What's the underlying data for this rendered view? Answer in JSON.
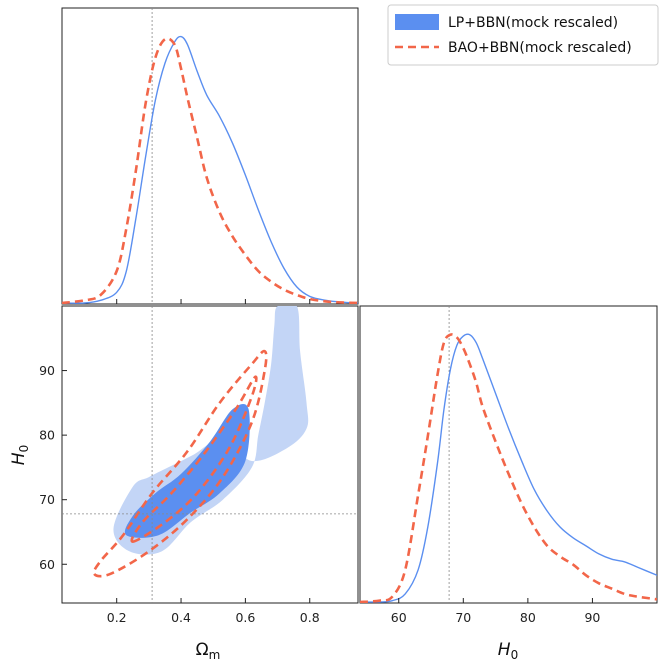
{
  "colors": {
    "lp": "#5b8ff0",
    "lp_inner": "#5b8ff0",
    "lp_outer": "#c3d5f6",
    "bao": "#f26649",
    "ref": "#888888"
  },
  "chart_data": {
    "type": "corner",
    "legend": {
      "placement": "top-right",
      "entries": [
        {
          "name": "LP+BBN(mock rescaled)",
          "style": "filled"
        },
        {
          "name": "BAO+BBN(mock rescaled)",
          "style": "dashed"
        }
      ]
    },
    "params": {
      "omega_m": {
        "label_base": "Ω",
        "label_sub": "m",
        "range": [
          0.03,
          0.95
        ],
        "ticks": [
          0.2,
          0.4,
          0.6,
          0.8
        ],
        "tick_labels": [
          "0.2",
          "0.4",
          "0.6",
          "0.8"
        ],
        "reference": 0.31
      },
      "h0": {
        "label_base": "H",
        "label_sub": "0",
        "range": [
          54,
          100
        ],
        "ticks": [
          60,
          70,
          80,
          90
        ],
        "tick_labels": [
          "60",
          "70",
          "80",
          "90"
        ],
        "reference": 67.8
      }
    },
    "omega_m_pdf": {
      "x": [
        0.03,
        0.1,
        0.15,
        0.2,
        0.23,
        0.26,
        0.29,
        0.32,
        0.35,
        0.38,
        0.4,
        0.42,
        0.45,
        0.48,
        0.52,
        0.56,
        0.6,
        0.64,
        0.68,
        0.72,
        0.76,
        0.8,
        0.85,
        0.9,
        0.95
      ],
      "lp": [
        0,
        0,
        0.01,
        0.04,
        0.12,
        0.32,
        0.55,
        0.76,
        0.9,
        0.98,
        1.0,
        0.97,
        0.87,
        0.78,
        0.7,
        0.6,
        0.48,
        0.35,
        0.23,
        0.13,
        0.06,
        0.025,
        0.01,
        0.003,
        0
      ],
      "bao": [
        0,
        0.01,
        0.03,
        0.12,
        0.28,
        0.5,
        0.75,
        0.92,
        0.99,
        0.97,
        0.88,
        0.77,
        0.62,
        0.47,
        0.34,
        0.25,
        0.18,
        0.12,
        0.08,
        0.05,
        0.03,
        0.015,
        0.006,
        0.002,
        0
      ]
    },
    "h0_pdf": {
      "x": [
        54,
        57,
        59,
        61,
        63,
        64.5,
        66,
        67,
        68,
        69,
        70,
        71,
        72,
        73,
        75,
        77,
        79,
        81,
        83,
        85,
        87,
        89,
        91,
        93,
        95,
        97,
        100
      ],
      "lp": [
        0,
        0,
        0.005,
        0.03,
        0.12,
        0.28,
        0.52,
        0.72,
        0.87,
        0.96,
        0.995,
        1.0,
        0.97,
        0.91,
        0.78,
        0.65,
        0.53,
        0.42,
        0.34,
        0.28,
        0.24,
        0.21,
        0.18,
        0.16,
        0.15,
        0.13,
        0.1
      ],
      "bao": [
        0,
        0.005,
        0.02,
        0.12,
        0.4,
        0.62,
        0.85,
        0.97,
        1.0,
        0.99,
        0.95,
        0.89,
        0.82,
        0.73,
        0.6,
        0.48,
        0.37,
        0.28,
        0.21,
        0.17,
        0.14,
        0.1,
        0.07,
        0.05,
        0.03,
        0.02,
        0.01
      ]
    },
    "contours": {
      "lp_95": [
        [
          0.25,
          72
        ],
        [
          0.19,
          65.5
        ],
        [
          0.24,
          62
        ],
        [
          0.34,
          62
        ],
        [
          0.43,
          66.5
        ],
        [
          0.53,
          70
        ],
        [
          0.62,
          75
        ],
        [
          0.64,
          80
        ],
        [
          0.66,
          85
        ],
        [
          0.68,
          91
        ],
        [
          0.69,
          97
        ],
        [
          0.7,
          100
        ],
        [
          0.76,
          100
        ],
        [
          0.77,
          93
        ],
        [
          0.79,
          85
        ],
        [
          0.79,
          81
        ],
        [
          0.73,
          78
        ],
        [
          0.62,
          76
        ],
        [
          0.53,
          79.5
        ],
        [
          0.44,
          77
        ],
        [
          0.36,
          75
        ],
        [
          0.3,
          73.5
        ]
      ],
      "lp_68": [
        [
          0.23,
          64.5
        ],
        [
          0.33,
          64.5
        ],
        [
          0.43,
          68
        ],
        [
          0.52,
          71
        ],
        [
          0.6,
          76
        ],
        [
          0.61,
          84
        ],
        [
          0.56,
          84
        ],
        [
          0.49,
          79
        ],
        [
          0.4,
          74
        ],
        [
          0.32,
          71
        ],
        [
          0.25,
          67.5
        ]
      ],
      "bao_95": [
        [
          0.13,
          58.5
        ],
        [
          0.18,
          58.5
        ],
        [
          0.3,
          62
        ],
        [
          0.42,
          67
        ],
        [
          0.53,
          73.5
        ],
        [
          0.62,
          82
        ],
        [
          0.66,
          90
        ],
        [
          0.66,
          93
        ],
        [
          0.62,
          91
        ],
        [
          0.52,
          85
        ],
        [
          0.42,
          77.5
        ],
        [
          0.31,
          71
        ],
        [
          0.22,
          64.5
        ],
        [
          0.15,
          60.5
        ]
      ],
      "bao_68": [
        [
          0.25,
          63.5
        ],
        [
          0.35,
          66.5
        ],
        [
          0.45,
          71
        ],
        [
          0.55,
          78
        ],
        [
          0.62,
          86
        ],
        [
          0.63,
          89
        ],
        [
          0.57,
          84
        ],
        [
          0.47,
          77
        ],
        [
          0.37,
          71
        ],
        [
          0.28,
          66.5
        ]
      ]
    }
  }
}
